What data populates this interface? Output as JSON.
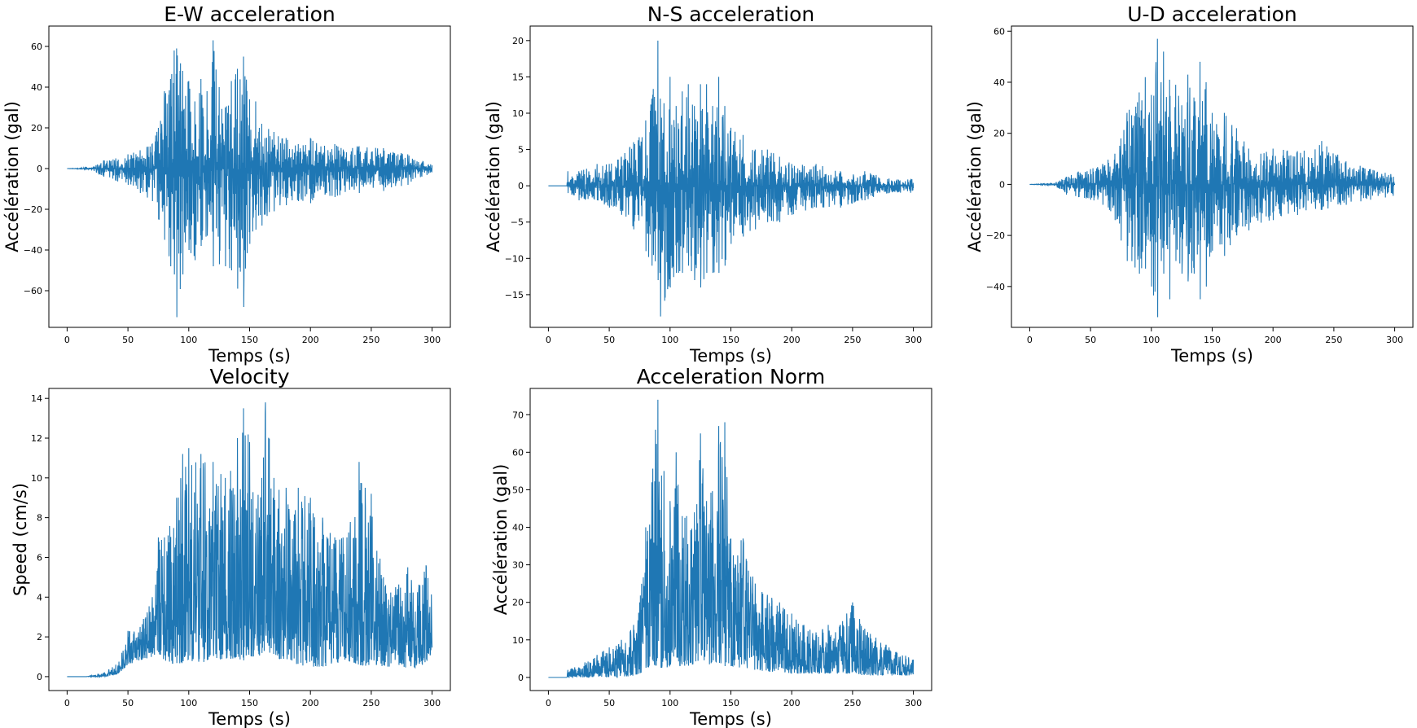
{
  "colors": {
    "series": "#1f77b4",
    "axes": "#000000",
    "background": "#ffffff"
  },
  "chart_data": [
    {
      "type": "line",
      "title": "E-W acceleration",
      "xlabel": "Temps (s)",
      "ylabel": "Accélération (gal)",
      "xlim": [
        -15,
        315
      ],
      "ylim": [
        -78,
        70
      ],
      "xticks": [
        0,
        50,
        100,
        150,
        200,
        250,
        300
      ],
      "yticks": [
        -60,
        -40,
        -20,
        0,
        20,
        40,
        60
      ],
      "grid": false,
      "series": [
        {
          "kind": "oscillating",
          "x": [
            0,
            20,
            30,
            40,
            50,
            60,
            70,
            75,
            80,
            85,
            88,
            90,
            95,
            100,
            105,
            110,
            115,
            120,
            125,
            130,
            135,
            140,
            145,
            150,
            155,
            160,
            170,
            180,
            190,
            200,
            220,
            240,
            260,
            280,
            300
          ],
          "upper": [
            0,
            0.5,
            4,
            5,
            7,
            9,
            12,
            20,
            38,
            44,
            58,
            59,
            48,
            43,
            33,
            44,
            38,
            63,
            40,
            30,
            43,
            49,
            55,
            34,
            33,
            22,
            18,
            15,
            12,
            15,
            12,
            11,
            10,
            7,
            2
          ],
          "lower": [
            0,
            -0.5,
            -4,
            -6,
            -8,
            -12,
            -16,
            -25,
            -35,
            -48,
            -52,
            -73,
            -52,
            -40,
            -45,
            -38,
            -33,
            -48,
            -47,
            -48,
            -50,
            -59,
            -68,
            -37,
            -30,
            -28,
            -21,
            -18,
            -16,
            -17,
            -14,
            -12,
            -11,
            -8,
            -2
          ]
        }
      ]
    },
    {
      "type": "line",
      "title": "N-S acceleration",
      "xlabel": "Temps (s)",
      "ylabel": "Accélération (gal)",
      "xlim": [
        -15,
        315
      ],
      "ylim": [
        -19.5,
        22
      ],
      "xticks": [
        0,
        50,
        100,
        150,
        200,
        250,
        300
      ],
      "yticks": [
        -15,
        -10,
        -5,
        0,
        5,
        10,
        15,
        20
      ],
      "grid": false,
      "series": [
        {
          "kind": "oscillating",
          "x": [
            0,
            15,
            16,
            25,
            40,
            50,
            60,
            70,
            80,
            85,
            90,
            92,
            100,
            105,
            110,
            115,
            120,
            125,
            130,
            135,
            140,
            145,
            150,
            160,
            170,
            180,
            190,
            200,
            220,
            240,
            260,
            280,
            300
          ],
          "upper": [
            0,
            0,
            2,
            2,
            3,
            3,
            4,
            6,
            9,
            12,
            20,
            12,
            15,
            11,
            13,
            14,
            11,
            14,
            14,
            11,
            15,
            11,
            8,
            7,
            5,
            5,
            4,
            3,
            3,
            2,
            2,
            1,
            1
          ],
          "lower": [
            0,
            0,
            -1,
            -2,
            -2,
            -3,
            -4,
            -6,
            -9,
            -11,
            -13,
            -18,
            -14,
            -12,
            -12,
            -11,
            -13,
            -14,
            -12,
            -12,
            -12,
            -11,
            -8,
            -7,
            -6,
            -5,
            -5,
            -4,
            -3,
            -3,
            -2,
            -1,
            -1
          ]
        }
      ]
    },
    {
      "type": "line",
      "title": "U-D acceleration",
      "xlabel": "Temps (s)",
      "ylabel": "Accélération (gal)",
      "xlim": [
        -15,
        315
      ],
      "ylim": [
        -56,
        62
      ],
      "xticks": [
        0,
        50,
        100,
        150,
        200,
        250,
        300
      ],
      "yticks": [
        -40,
        -20,
        0,
        20,
        40,
        60
      ],
      "grid": false,
      "series": [
        {
          "kind": "oscillating",
          "x": [
            0,
            20,
            30,
            40,
            50,
            60,
            70,
            75,
            80,
            90,
            95,
            100,
            105,
            108,
            110,
            115,
            120,
            125,
            130,
            135,
            140,
            145,
            150,
            160,
            170,
            180,
            190,
            200,
            220,
            240,
            260,
            280,
            300
          ],
          "upper": [
            0,
            0.5,
            3,
            5,
            6,
            8,
            12,
            18,
            28,
            36,
            42,
            35,
            57,
            40,
            52,
            41,
            39,
            31,
            43,
            34,
            48,
            40,
            28,
            28,
            22,
            14,
            12,
            14,
            13,
            17,
            9,
            6,
            4
          ],
          "lower": [
            0,
            -0.5,
            -4,
            -5,
            -6,
            -8,
            -14,
            -22,
            -30,
            -35,
            -33,
            -40,
            -52,
            -30,
            -35,
            -45,
            -30,
            -35,
            -38,
            -35,
            -45,
            -40,
            -26,
            -28,
            -20,
            -18,
            -15,
            -14,
            -12,
            -10,
            -8,
            -6,
            -5
          ]
        }
      ]
    },
    {
      "type": "line",
      "title": "Velocity",
      "xlabel": "Temps (s)",
      "ylabel": "Speed (cm/s)",
      "xlim": [
        -15,
        315
      ],
      "ylim": [
        -0.7,
        14.5
      ],
      "xticks": [
        0,
        50,
        100,
        150,
        200,
        250,
        300
      ],
      "yticks": [
        0,
        2,
        4,
        6,
        8,
        10,
        12,
        14
      ],
      "grid": false,
      "series": [
        {
          "kind": "positive",
          "x": [
            0,
            15,
            20,
            30,
            40,
            45,
            50,
            60,
            70,
            75,
            80,
            90,
            95,
            100,
            110,
            120,
            130,
            140,
            145,
            150,
            160,
            163,
            170,
            180,
            190,
            200,
            210,
            220,
            230,
            240,
            245,
            250,
            260,
            270,
            280,
            290,
            295,
            300
          ],
          "upper": [
            0,
            0,
            0.05,
            0.2,
            0.6,
            1.2,
            2.3,
            2.5,
            4,
            7,
            7,
            9,
            11.2,
            11.5,
            11.2,
            10.8,
            10,
            12,
            13.5,
            11.8,
            10,
            13.8,
            10,
            9.5,
            9.5,
            9,
            8,
            7,
            7,
            10.8,
            9.5,
            9.2,
            5,
            4.5,
            5.5,
            4.6,
            5.6,
            4
          ],
          "lower": [
            0,
            0,
            0,
            0,
            0.1,
            0.3,
            0.6,
            0.8,
            1,
            1.2,
            0.8,
            0.6,
            0.6,
            0.8,
            0.7,
            0.8,
            0.9,
            0.9,
            0.8,
            0.9,
            1.1,
            1.2,
            1.0,
            0.8,
            0.6,
            0.5,
            0.5,
            0.6,
            0.8,
            0.6,
            0.5,
            0.6,
            0.5,
            0.5,
            0.4,
            0.5,
            0.7,
            1.2
          ]
        }
      ]
    },
    {
      "type": "line",
      "title": "Acceleration Norm",
      "xlabel": "Temps (s)",
      "ylabel": "Accélération (gal)",
      "xlim": [
        -15,
        315
      ],
      "ylim": [
        -3.5,
        77
      ],
      "xticks": [
        0,
        50,
        100,
        150,
        200,
        250,
        300
      ],
      "yticks": [
        0,
        10,
        20,
        30,
        40,
        50,
        60,
        70
      ],
      "grid": false,
      "series": [
        {
          "kind": "positive",
          "x": [
            0,
            15,
            16,
            30,
            40,
            50,
            60,
            70,
            75,
            80,
            85,
            88,
            90,
            95,
            100,
            105,
            110,
            120,
            125,
            130,
            140,
            145,
            150,
            160,
            170,
            180,
            190,
            200,
            210,
            220,
            230,
            240,
            250,
            260,
            280,
            300
          ],
          "upper": [
            0,
            0,
            2,
            4,
            6,
            8,
            10,
            14,
            20,
            40,
            52,
            66,
            74,
            55,
            47,
            60,
            43,
            44,
            65,
            47,
            67,
            68,
            37,
            37,
            25,
            22,
            20,
            17,
            14,
            12,
            14,
            14,
            20,
            13,
            8,
            5
          ],
          "lower": [
            0,
            0,
            0,
            0,
            0,
            0,
            0,
            0.5,
            1,
            2,
            3,
            3,
            3,
            2,
            3,
            3,
            3,
            3,
            4,
            3,
            4,
            3,
            3,
            2.5,
            2,
            1.5,
            1.5,
            1,
            1,
            1,
            1,
            1,
            1,
            0.5,
            0.5,
            0.5
          ]
        }
      ]
    }
  ]
}
